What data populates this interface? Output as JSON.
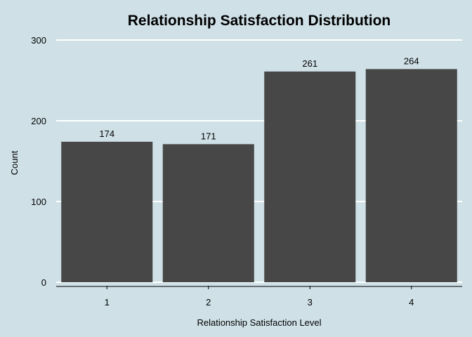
{
  "chart_data": {
    "type": "bar",
    "title": "Relationship Satisfaction Distribution",
    "xlabel": "Relationship Satisfaction Level",
    "ylabel": "Count",
    "categories": [
      "1",
      "2",
      "3",
      "4"
    ],
    "values": [
      174,
      171,
      261,
      264
    ],
    "data_labels": [
      "174",
      "171",
      "261",
      "264"
    ],
    "ylim": [
      0,
      300
    ],
    "yticks": [
      0,
      100,
      200,
      300
    ],
    "grid": "horizontal",
    "legend": "none",
    "colors": {
      "background": "#cfe0e7",
      "bar": "#474747",
      "grid": "#ffffff",
      "axis": "#000000",
      "text": "#000000"
    }
  }
}
